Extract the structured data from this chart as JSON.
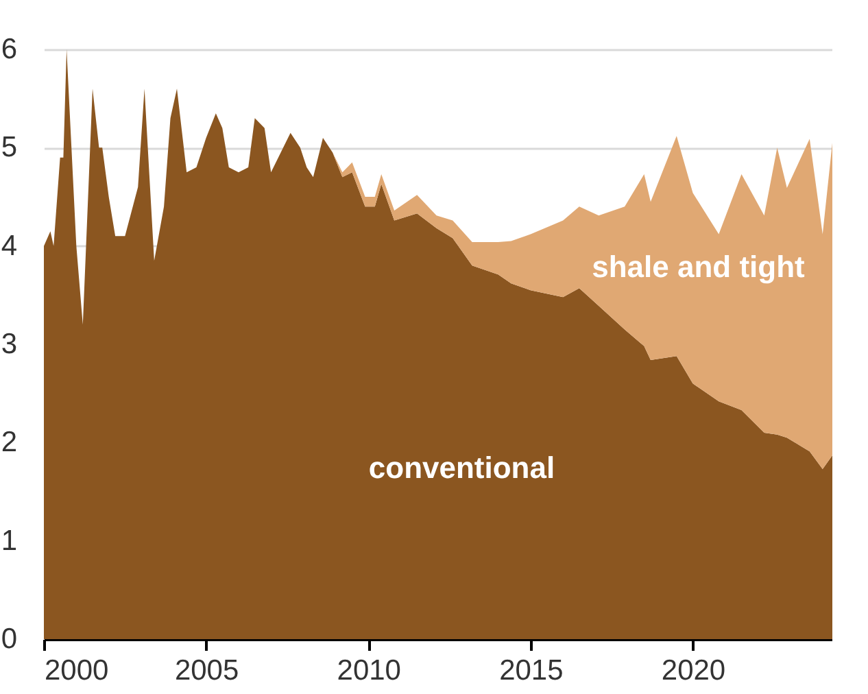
{
  "chart_data": {
    "type": "area",
    "stacked": true,
    "x": [
      2000.0,
      2000.2,
      2000.3,
      2000.5,
      2000.6,
      2000.7,
      2001.0,
      2001.2,
      2001.3,
      2001.5,
      2001.7,
      2001.8,
      2002.0,
      2002.2,
      2002.5,
      2002.9,
      2003.1,
      2003.4,
      2003.7,
      2003.9,
      2004.1,
      2004.4,
      2004.7,
      2005.0,
      2005.3,
      2005.5,
      2005.7,
      2006.0,
      2006.3,
      2006.5,
      2006.8,
      2007.0,
      2007.3,
      2007.6,
      2007.9,
      2008.1,
      2008.3,
      2008.6,
      2008.9,
      2009.2,
      2009.5,
      2009.9,
      2010.2,
      2010.4,
      2010.8,
      2011.5,
      2012.1,
      2012.6,
      2013.2,
      2014.0,
      2014.4,
      2015.0,
      2016.0,
      2016.5,
      2017.1,
      2017.9,
      2018.5,
      2018.7,
      2019.5,
      2020.0,
      2020.8,
      2021.5,
      2022.2,
      2022.6,
      2022.9,
      2023.6,
      2024.0,
      2024.3
    ],
    "series": [
      {
        "name": "conventional",
        "color": "#8b5620",
        "values": [
          4.0,
          4.15,
          4.0,
          4.9,
          4.9,
          6.0,
          4.0,
          3.2,
          4.0,
          5.6,
          5.0,
          5.0,
          4.5,
          4.1,
          4.1,
          4.6,
          5.6,
          3.85,
          4.4,
          5.3,
          5.6,
          4.75,
          4.8,
          5.1,
          5.35,
          5.2,
          4.8,
          4.75,
          4.8,
          5.3,
          5.2,
          4.75,
          4.95,
          5.15,
          5.0,
          4.8,
          4.7,
          5.1,
          4.95,
          4.7,
          4.75,
          4.4,
          4.4,
          4.63,
          4.26,
          4.33,
          4.18,
          4.08,
          3.8,
          3.71,
          3.62,
          3.55,
          3.48,
          3.57,
          3.39,
          3.15,
          2.98,
          2.84,
          2.88,
          2.6,
          2.42,
          2.33,
          2.1,
          2.08,
          2.05,
          1.91,
          1.73,
          1.87
        ]
      },
      {
        "name": "shale and tight",
        "color": "#e0a873",
        "values": [
          0,
          0,
          0,
          0,
          0,
          0,
          0,
          0,
          0,
          0,
          0,
          0,
          0,
          0,
          0,
          0,
          0,
          0,
          0,
          0,
          0,
          0,
          0,
          0,
          0,
          0,
          0,
          0,
          0,
          0,
          0,
          0,
          0,
          0,
          0,
          0,
          0,
          0,
          0,
          0.05,
          0.1,
          0.1,
          0.1,
          0.1,
          0.1,
          0.19,
          0.13,
          0.18,
          0.24,
          0.33,
          0.43,
          0.57,
          0.78,
          0.83,
          0.92,
          1.25,
          1.75,
          1.61,
          2.24,
          1.94,
          1.7,
          2.4,
          2.21,
          2.92,
          2.54,
          3.18,
          2.39,
          3.18
        ]
      }
    ],
    "xlim": [
      2000,
      2024.3
    ],
    "xticks": [
      2000,
      2005,
      2010,
      2015,
      2020
    ],
    "ylim": [
      0,
      6
    ],
    "yticks": [
      0,
      1,
      2,
      3,
      4,
      5,
      6
    ],
    "grid": "y",
    "legend": false
  }
}
